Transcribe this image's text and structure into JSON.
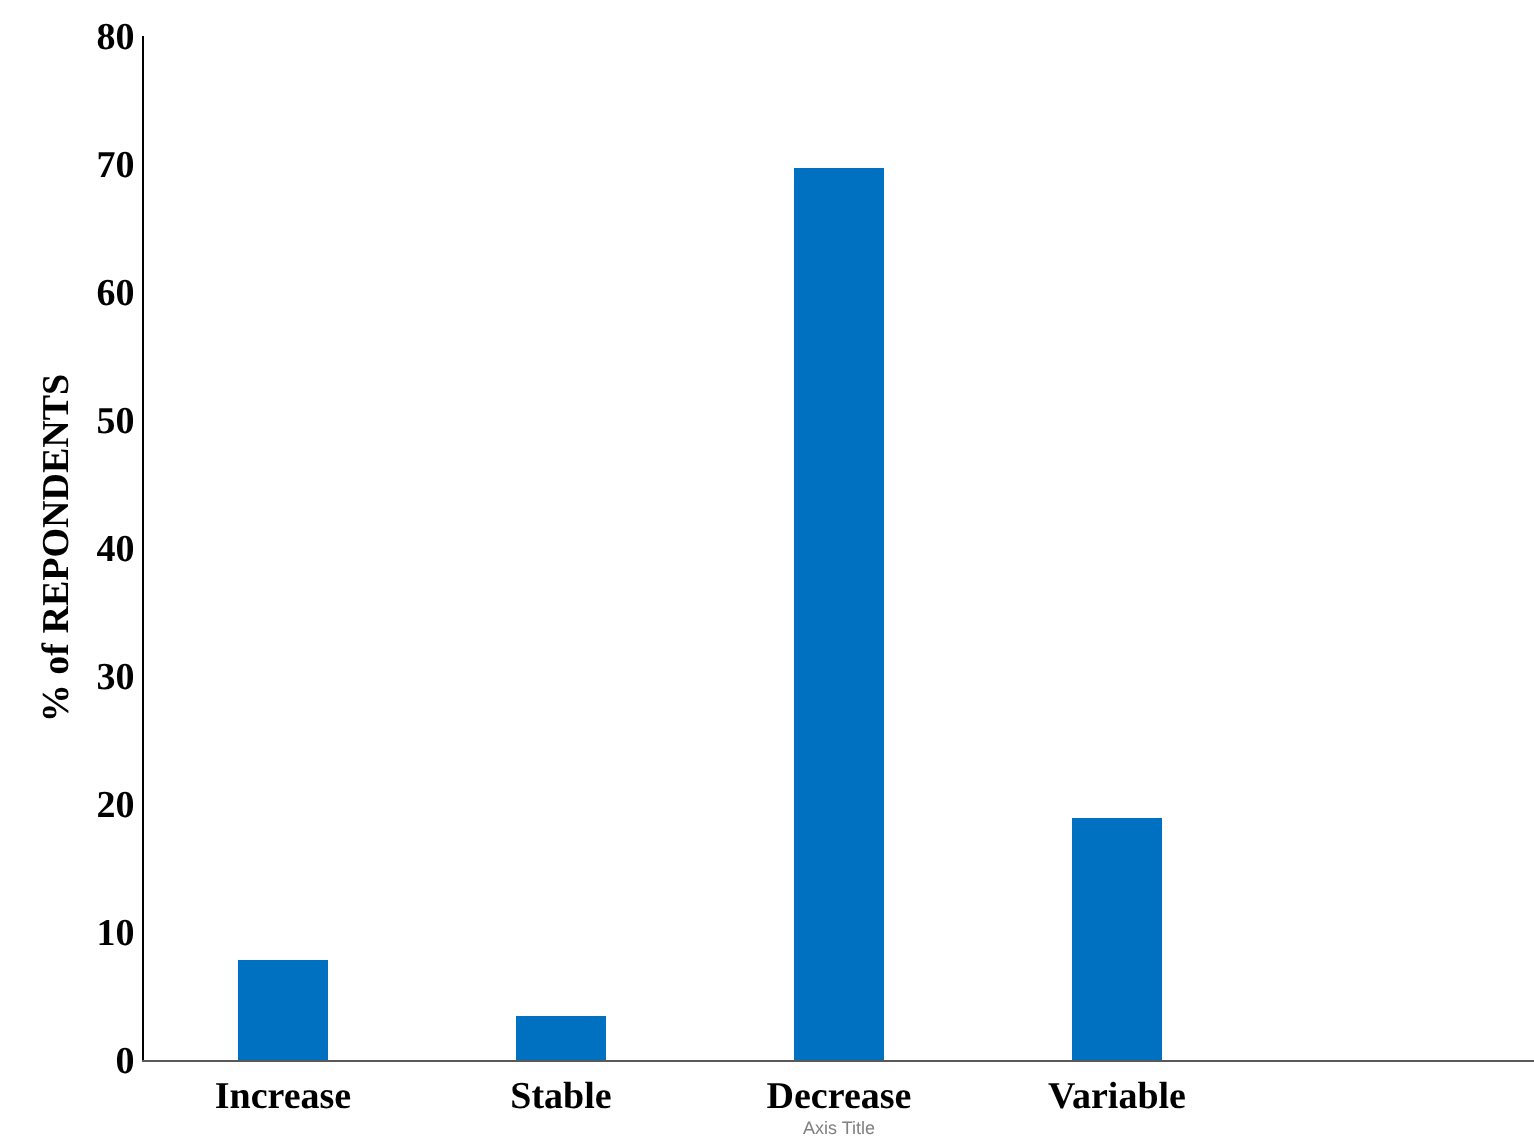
{
  "chart_data": {
    "type": "bar",
    "ylabel": "% of REPONDENTS",
    "xlabel": "Axis Title",
    "categories": [
      "Increase",
      "Stable",
      "Decrease",
      "Variable",
      null
    ],
    "values": [
      7.8,
      3.4,
      69.7,
      18.9,
      null
    ],
    "color": "#0070c0",
    "ylim": [
      0,
      80
    ],
    "yticks": [
      0,
      10,
      20,
      30,
      40,
      50,
      60,
      70,
      80
    ],
    "legend": false
  }
}
